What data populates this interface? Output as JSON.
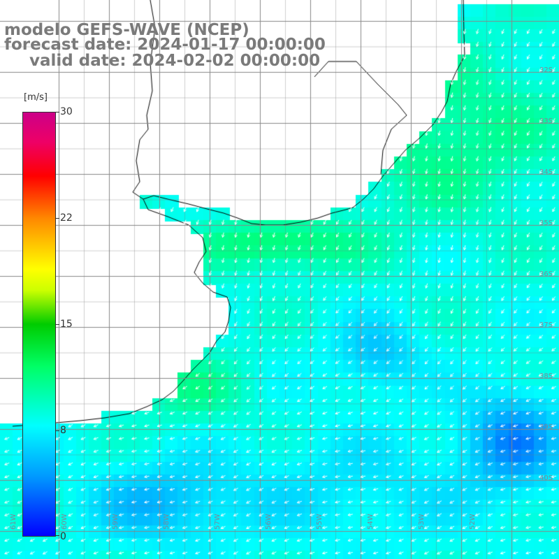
{
  "header": {
    "title": "modelo GEFS-WAVE (NCEP)",
    "forecast": "forecast date: 2024-01-17 00:00:00",
    "valid": "valid date: 2024-02-02 00:00:00"
  },
  "colorbar": {
    "unit": "[m/s]",
    "min": 0,
    "max": 30,
    "ticks": [
      "30",
      "22",
      "15",
      "8",
      "0"
    ],
    "tick_values": [
      30,
      22,
      15,
      8,
      0
    ]
  },
  "map": {
    "lat_labels": [
      "32S",
      "33S",
      "34S",
      "35S",
      "36S",
      "37S",
      "38S",
      "39S",
      "40S"
    ],
    "lon_labels": [
      "61W",
      "60W",
      "59W",
      "58W",
      "57W",
      "56W",
      "55W",
      "54W",
      "53W",
      "52W"
    ],
    "colors": {
      "land": "#ffffff",
      "coast": "#000000",
      "grid": "#888888",
      "arrow": "#ffffff"
    }
  }
}
